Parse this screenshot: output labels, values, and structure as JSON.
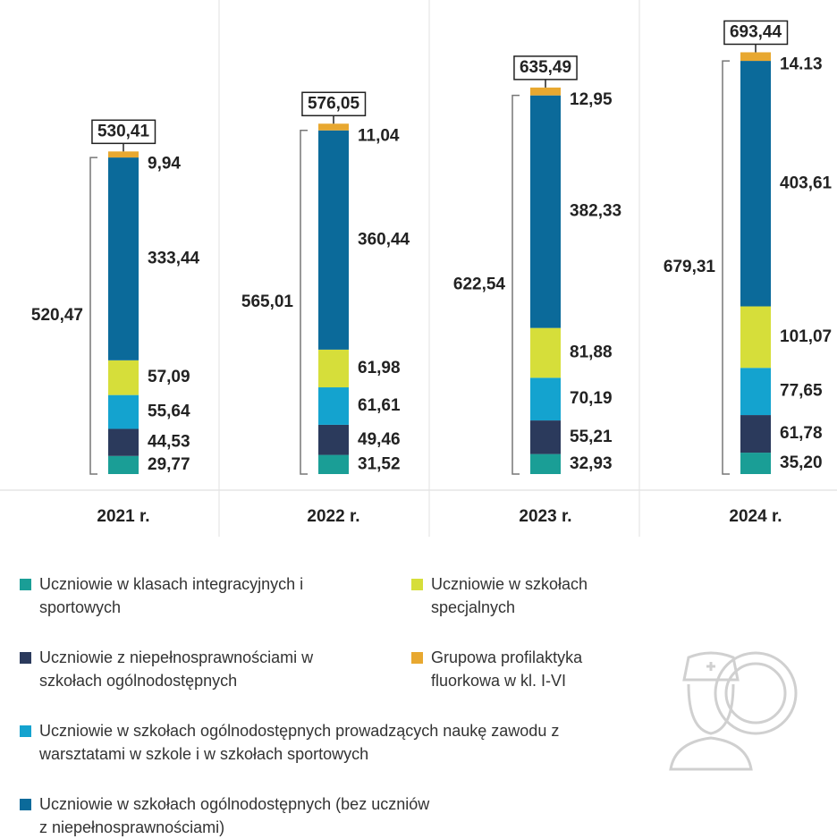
{
  "chart_data": {
    "type": "stacked_bar",
    "categories": [
      "2021 r.",
      "2022 r.",
      "2023 r.",
      "2024 r."
    ],
    "series": [
      {
        "name": "Uczniowie w klasach integracyjnych i sportowych",
        "color": "#1a9e96",
        "values": [
          29.77,
          31.52,
          32.93,
          35.2
        ],
        "value_labels": [
          "29,77",
          "31,52",
          "32,93",
          "35,20"
        ]
      },
      {
        "name": "Uczniowie z niepełnosprawnościami w szkołach ogólnodostępnych",
        "color": "#2b3a5c",
        "values": [
          44.53,
          49.46,
          55.21,
          61.78
        ],
        "value_labels": [
          "44,53",
          "49,46",
          "55,21",
          "61,78"
        ]
      },
      {
        "name": "Uczniowie w szkołach ogólnodostępnych prowadzących naukę zawodu z warsztatami w szkole i w szkołach sportowych",
        "color": "#14a3cf",
        "values": [
          55.64,
          61.61,
          70.19,
          77.65
        ],
        "value_labels": [
          "55,64",
          "61,61",
          "70,19",
          "77,65"
        ]
      },
      {
        "name": "Uczniowie w szkołach specjalnych",
        "color": "#d6de3a",
        "values": [
          57.09,
          61.98,
          81.88,
          101.07
        ],
        "value_labels": [
          "57,09",
          "61,98",
          "81,88",
          "101,07"
        ]
      },
      {
        "name": "Uczniowie w szkołach ogólnodostępnych (bez uczniów z niepełnosprawnościami)",
        "color": "#0b6a9a",
        "values": [
          333.44,
          360.44,
          382.33,
          403.61
        ],
        "value_labels": [
          "333,44",
          "360,44",
          "382,33",
          "403,61"
        ]
      },
      {
        "name": "Grupowa profilaktyka fluorkowa w kl. I-VI",
        "color": "#e8a830",
        "values": [
          9.94,
          11.04,
          12.95,
          14.13
        ],
        "value_labels": [
          "9,94",
          "11,04",
          "12,95",
          "14.13"
        ]
      }
    ],
    "totals": [
      530.41,
      576.05,
      635.49,
      693.44
    ],
    "total_labels": [
      "530,41",
      "576,05",
      "635,49",
      "693,44"
    ],
    "subtotals": [
      520.47,
      565.01,
      622.54,
      679.31
    ],
    "subtotal_labels": [
      "520,47",
      "565,01",
      "622,54",
      "679,31"
    ]
  }
}
